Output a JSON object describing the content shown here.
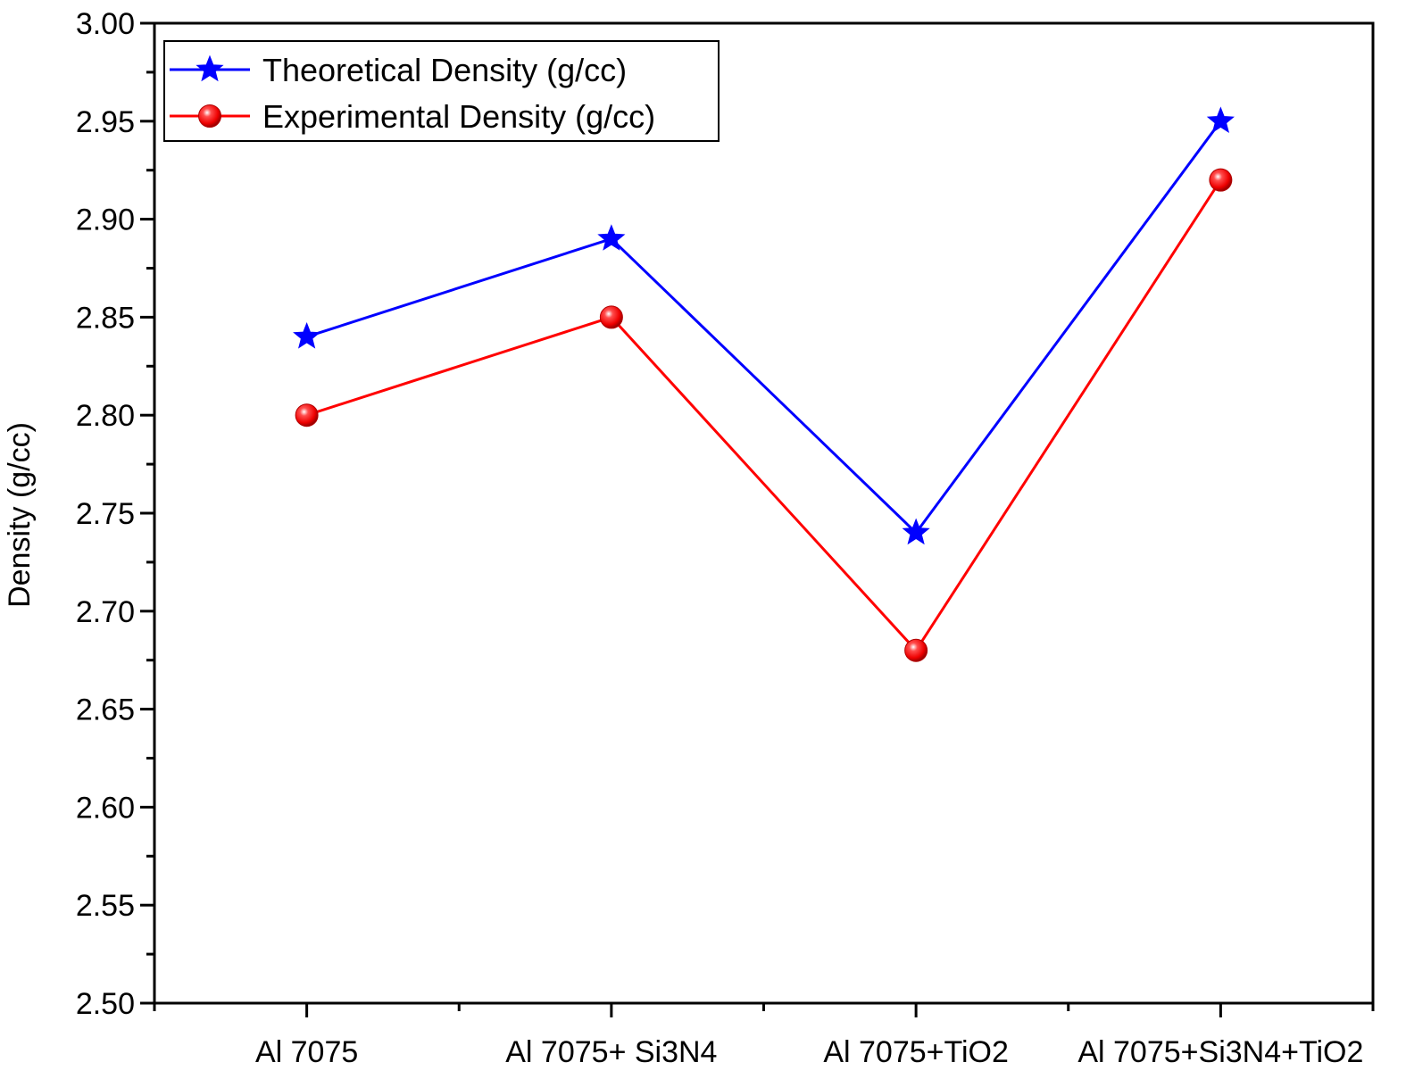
{
  "chart_data": {
    "type": "line",
    "ylabel": "Density (g/cc)",
    "xlabel": "",
    "ylim": [
      2.5,
      3.0
    ],
    "yticks": [
      2.5,
      2.55,
      2.6,
      2.65,
      2.7,
      2.75,
      2.8,
      2.85,
      2.9,
      2.95,
      3.0
    ],
    "categories": [
      "Al 7075",
      "Al 7075+ Si3N4",
      "Al 7075+TiO2",
      "Al 7075+Si3N4+TiO2"
    ],
    "series": [
      {
        "name": "Theoretical Density (g/cc)",
        "values": [
          2.84,
          2.89,
          2.74,
          2.95
        ],
        "color": "#0000ff",
        "marker": "star"
      },
      {
        "name": "Experimental Density (g/cc)",
        "values": [
          2.8,
          2.85,
          2.68,
          2.92
        ],
        "color": "#ff0000",
        "marker": "sphere"
      }
    ],
    "legend": "top-left",
    "grid": false
  }
}
